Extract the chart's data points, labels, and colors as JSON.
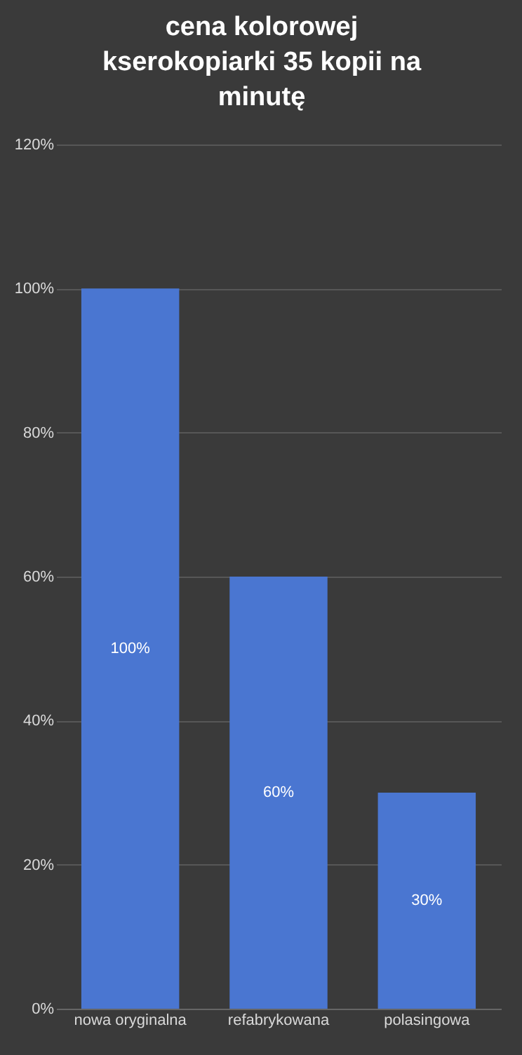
{
  "chart_data": {
    "type": "bar",
    "title": "cena kolorowej kserokopiarki 35 kopii na minutę",
    "categories": [
      "nowa oryginalna",
      "refabrykowana",
      "polasingowa"
    ],
    "values": [
      100,
      60,
      30
    ],
    "color": "#4a76d1",
    "value_labels": [
      "100%",
      "60%",
      "30%"
    ],
    "ylim": [
      0,
      120
    ],
    "yticks": [
      {
        "value": 0,
        "label": "0%"
      },
      {
        "value": 20,
        "label": "20%"
      },
      {
        "value": 40,
        "label": "40%"
      },
      {
        "value": 60,
        "label": "60%"
      },
      {
        "value": 80,
        "label": "80%"
      },
      {
        "value": 100,
        "label": "100%"
      },
      {
        "value": 120,
        "label": "120%"
      }
    ],
    "grid": true
  }
}
